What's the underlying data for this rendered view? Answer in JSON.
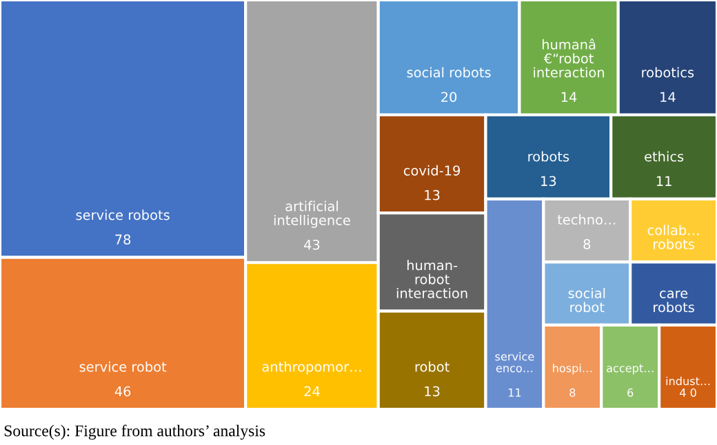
{
  "chart_data": {
    "type": "other",
    "categories": [
      "service robots",
      "service robot",
      "artificial\nintelligence",
      "anthropomor…",
      "social robots",
      "humanâ\n€“robot\ninteraction",
      "robotics",
      "covid-19",
      "human-\nrobot\ninteraction",
      "robot",
      "robots",
      "ethics",
      "service\nenco…",
      "techno…",
      "collab…\nrobots",
      "social\nrobot",
      "care\nrobots",
      "hospi…",
      "accept…",
      "indust…\n4 0"
    ],
    "values": [
      78,
      46,
      43,
      24,
      20,
      14,
      14,
      13,
      null,
      13,
      13,
      11,
      11,
      8,
      null,
      null,
      null,
      8,
      6,
      null
    ],
    "colors": [
      "#4472c4",
      "#ed7d31",
      "#a5a5a5",
      "#ffc000",
      "#5b9bd5",
      "#70ad47",
      "#264478",
      "#9e480e",
      "#636363",
      "#997300",
      "#255e91",
      "#43682b",
      "#698ed0",
      "#b7b7b7",
      "#ffcd33",
      "#7cafdd",
      "#335aa1",
      "#f1975a",
      "#8cc168",
      "#d26012"
    ],
    "data_labels": true,
    "annotations": [
      "Source(s): Figure from authors’ analysis"
    ]
  }
}
